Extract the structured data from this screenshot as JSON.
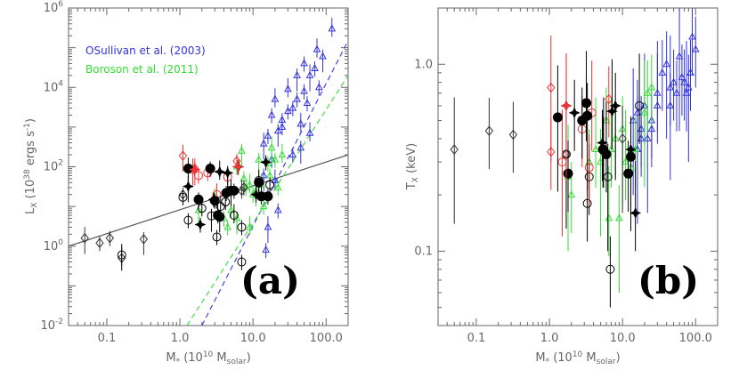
{
  "chart_data": [
    {
      "type": "scatter",
      "panel_label": "(a)",
      "xlabel": "M* (10^10 M_solar)",
      "ylabel": "L_X (10^38 ergs s^-1)",
      "xscale": "log",
      "yscale": "log",
      "xlim": [
        0.03,
        200
      ],
      "ylim": [
        0.01,
        1000000
      ],
      "x_ticks": [
        "0.1",
        "1.0",
        "10.0",
        "100.0"
      ],
      "y_ticks": [
        "10^-2",
        "10^0",
        "10^2",
        "10^4",
        "10^6"
      ],
      "legend": [
        {
          "label": "OSullivan et al. (2003)",
          "color": "#3333dd"
        },
        {
          "label": "Boroson et al. (2011)",
          "color": "#33dd33"
        }
      ],
      "series": [
        {
          "name": "OSullivan et al. (2003)",
          "color": "#3333dd",
          "marker": "triangle-up",
          "points": [
            [
              14,
              380
            ],
            [
              16,
              600
            ],
            [
              18,
              2000
            ],
            [
              20,
              5000
            ],
            [
              22,
              800
            ],
            [
              25,
              1500
            ],
            [
              30,
              9000
            ],
            [
              35,
              3000
            ],
            [
              40,
              20000
            ],
            [
              45,
              1200
            ],
            [
              50,
              8000
            ],
            [
              55,
              4000
            ],
            [
              60,
              20000
            ],
            [
              70,
              30000
            ],
            [
              80,
              10000
            ],
            [
              120,
              300000
            ],
            [
              90,
              60000
            ],
            [
              50,
              40000
            ],
            [
              25,
              1000
            ],
            [
              18,
              150
            ],
            [
              14,
              60
            ],
            [
              20,
              45
            ],
            [
              22,
              8
            ],
            [
              15,
              0.8
            ],
            [
              16,
              3
            ],
            [
              40,
              5000
            ],
            [
              30,
              2500
            ],
            [
              60,
              700
            ],
            [
              45,
              300
            ],
            [
              35,
              200
            ],
            [
              75,
              90000
            ]
          ]
        },
        {
          "name": "Boroson et al. (2011)",
          "color": "#33dd33",
          "marker": "triangle-up",
          "points": [
            [
              1.8,
              8
            ],
            [
              4,
              5
            ],
            [
              5,
              8
            ],
            [
              6,
              100
            ],
            [
              7,
              250
            ],
            [
              8,
              30
            ],
            [
              9,
              35
            ],
            [
              10,
              20
            ],
            [
              12,
              150
            ],
            [
              13,
              35
            ],
            [
              14,
              10
            ],
            [
              16,
              120
            ],
            [
              18,
              300
            ],
            [
              20,
              150
            ],
            [
              22,
              30
            ],
            [
              25,
              200
            ],
            [
              6,
              5
            ],
            [
              4.5,
              3
            ],
            [
              3,
              15
            ],
            [
              7.5,
              50
            ],
            [
              11,
              25
            ],
            [
              9,
              3
            ],
            [
              17,
              60
            ]
          ]
        },
        {
          "name": "",
          "color": "#000000",
          "marker": "filled-circle",
          "points": [
            [
              1.3,
              90
            ],
            [
              1.8,
              15
            ],
            [
              2.6,
              90
            ],
            [
              3.3,
              6
            ],
            [
              3.5,
              5.5
            ],
            [
              4.3,
              22
            ],
            [
              5,
              25
            ],
            [
              5.5,
              25
            ],
            [
              12,
              40
            ],
            [
              13,
              18
            ],
            [
              16,
              18
            ],
            [
              3,
              14
            ]
          ]
        },
        {
          "name": "",
          "color": "#000000",
          "marker": "filled-diamond",
          "points": [
            [
              1.3,
              32
            ],
            [
              1.9,
              3.5
            ],
            [
              2.9,
              15
            ],
            [
              3.5,
              75
            ],
            [
              4.5,
              70
            ],
            [
              6.3,
              100
            ],
            [
              11,
              20
            ],
            [
              15,
              130
            ]
          ]
        },
        {
          "name": "",
          "color": "#000000",
          "marker": "open-circle",
          "points": [
            [
              0.16,
              0.6
            ],
            [
              1.1,
              17
            ],
            [
              1.3,
              4.5
            ],
            [
              2,
              9
            ],
            [
              2.7,
              5.8
            ],
            [
              3.2,
              1.7
            ],
            [
              3.6,
              10
            ],
            [
              4.2,
              13
            ],
            [
              5,
              25
            ],
            [
              5.5,
              6
            ],
            [
              7,
              3
            ],
            [
              7,
              0.4
            ],
            [
              12,
              45
            ],
            [
              17,
              35
            ]
          ]
        },
        {
          "name": "",
          "color": "#ee3333",
          "marker": "open-circle",
          "points": [
            [
              1.5,
              85
            ],
            [
              1.8,
              60
            ],
            [
              2.4,
              70
            ],
            [
              3.2,
              20
            ],
            [
              4.5,
              55
            ]
          ]
        },
        {
          "name": "",
          "color": "#ee3333",
          "marker": "open-diamond",
          "points": [
            [
              1.1,
              190
            ],
            [
              1.6,
              90
            ],
            [
              6,
              140
            ]
          ]
        },
        {
          "name": "",
          "color": "#ee3333",
          "marker": "filled-diamond",
          "points": [
            [
              1.6,
              85
            ],
            [
              6.2,
              100
            ]
          ]
        },
        {
          "name": "",
          "color": "#333333",
          "marker": "open-diamond",
          "points": [
            [
              0.05,
              1.6
            ],
            [
              0.08,
              1.2
            ],
            [
              0.11,
              1.6
            ],
            [
              0.16,
              0.5
            ],
            [
              0.32,
              1.5
            ],
            [
              1.1,
              20
            ],
            [
              7,
              25
            ],
            [
              7.5,
              30
            ]
          ]
        }
      ],
      "fit_lines": [
        {
          "color": "#555555",
          "style": "solid",
          "from": [
            0.03,
            1.0
          ],
          "to": [
            200,
            200
          ]
        },
        {
          "color": "#4444dd",
          "style": "dashed",
          "from": [
            2,
            0.01
          ],
          "to": [
            200,
            150000
          ]
        },
        {
          "color": "#44dd44",
          "style": "dashed",
          "from": [
            1.25,
            0.01
          ],
          "to": [
            200,
            20000
          ]
        }
      ]
    },
    {
      "type": "scatter",
      "panel_label": "(b)",
      "xlabel": "M* (10^10 M_solar)",
      "ylabel": "T_X (keV)",
      "xscale": "log",
      "yscale": "log",
      "xlim": [
        0.03,
        200
      ],
      "ylim": [
        0.04,
        2.0
      ],
      "x_ticks": [
        "0.1",
        "1.0",
        "10.0",
        "100.0"
      ],
      "y_ticks": [
        "0.1",
        "1.0"
      ],
      "series": [
        {
          "name": "OSullivan et al. (2003)",
          "color": "#3333dd",
          "marker": "triangle-up",
          "points": [
            [
              14,
              0.5
            ],
            [
              16,
              0.55
            ],
            [
              18,
              0.45
            ],
            [
              20,
              0.6
            ],
            [
              22,
              0.4
            ],
            [
              25,
              0.5
            ],
            [
              30,
              0.7
            ],
            [
              35,
              0.9
            ],
            [
              40,
              1.0
            ],
            [
              45,
              0.75
            ],
            [
              50,
              0.8
            ],
            [
              55,
              0.7
            ],
            [
              60,
              1.1
            ],
            [
              65,
              0.85
            ],
            [
              70,
              0.8
            ],
            [
              75,
              0.7
            ],
            [
              80,
              0.75
            ],
            [
              85,
              0.9
            ],
            [
              90,
              1.4
            ],
            [
              100,
              1.2
            ],
            [
              45,
              0.6
            ],
            [
              30,
              0.6
            ],
            [
              25,
              0.45
            ],
            [
              18,
              0.4
            ],
            [
              16,
              0.35
            ]
          ]
        },
        {
          "name": "Boroson et al. (2011)",
          "color": "#33dd33",
          "marker": "triangle-up",
          "points": [
            [
              1.8,
              0.25
            ],
            [
              2,
              0.2
            ],
            [
              3.5,
              0.3
            ],
            [
              4.3,
              0.35
            ],
            [
              5,
              0.3
            ],
            [
              6,
              0.5
            ],
            [
              7,
              0.35
            ],
            [
              8,
              0.4
            ],
            [
              10,
              0.45
            ],
            [
              11,
              0.3
            ],
            [
              13,
              0.28
            ],
            [
              15,
              0.35
            ],
            [
              20,
              0.55
            ],
            [
              22,
              0.7
            ],
            [
              25,
              0.75
            ],
            [
              6.5,
              0.15
            ],
            [
              9,
              0.15
            ]
          ]
        },
        {
          "name": "",
          "color": "#000000",
          "marker": "filled-circle",
          "points": [
            [
              1.3,
              0.52
            ],
            [
              1.8,
              0.26
            ],
            [
              2.8,
              0.5
            ],
            [
              3.2,
              0.62
            ],
            [
              3.3,
              0.53
            ],
            [
              5.4,
              0.35
            ],
            [
              6,
              0.33
            ],
            [
              12,
              0.26
            ],
            [
              13,
              0.32
            ]
          ]
        },
        {
          "name": "",
          "color": "#000000",
          "marker": "filled-diamond",
          "points": [
            [
              1.7,
              0.6
            ],
            [
              2.2,
              0.55
            ],
            [
              5.3,
              0.38
            ],
            [
              7.2,
              0.56
            ],
            [
              8,
              0.6
            ],
            [
              13,
              0.35
            ],
            [
              15,
              0.16
            ]
          ]
        },
        {
          "name": "",
          "color": "#000000",
          "marker": "open-circle",
          "points": [
            [
              1.7,
              0.33
            ],
            [
              3.3,
              0.18
            ],
            [
              3.5,
              0.25
            ],
            [
              5.5,
              0.35
            ],
            [
              6.3,
              0.25
            ],
            [
              6.8,
              0.08
            ],
            [
              17,
              0.6
            ]
          ]
        },
        {
          "name": "",
          "color": "#ee3333",
          "marker": "open-circle",
          "points": [
            [
              1.5,
              0.3
            ],
            [
              2.8,
              0.45
            ],
            [
              3.5,
              0.28
            ],
            [
              3.8,
              0.55
            ]
          ]
        },
        {
          "name": "",
          "color": "#ee3333",
          "marker": "open-diamond",
          "points": [
            [
              1.05,
              0.75
            ],
            [
              1.05,
              0.34
            ],
            [
              6.5,
              0.65
            ]
          ]
        },
        {
          "name": "",
          "color": "#ee3333",
          "marker": "filled-diamond",
          "points": [
            [
              1.7,
              0.6
            ]
          ]
        },
        {
          "name": "",
          "color": "#333333",
          "marker": "open-diamond",
          "points": [
            [
              0.05,
              0.35
            ],
            [
              0.15,
              0.44
            ],
            [
              0.32,
              0.42
            ],
            [
              1.7,
              0.33
            ],
            [
              10,
              0.4
            ]
          ]
        }
      ]
    }
  ]
}
